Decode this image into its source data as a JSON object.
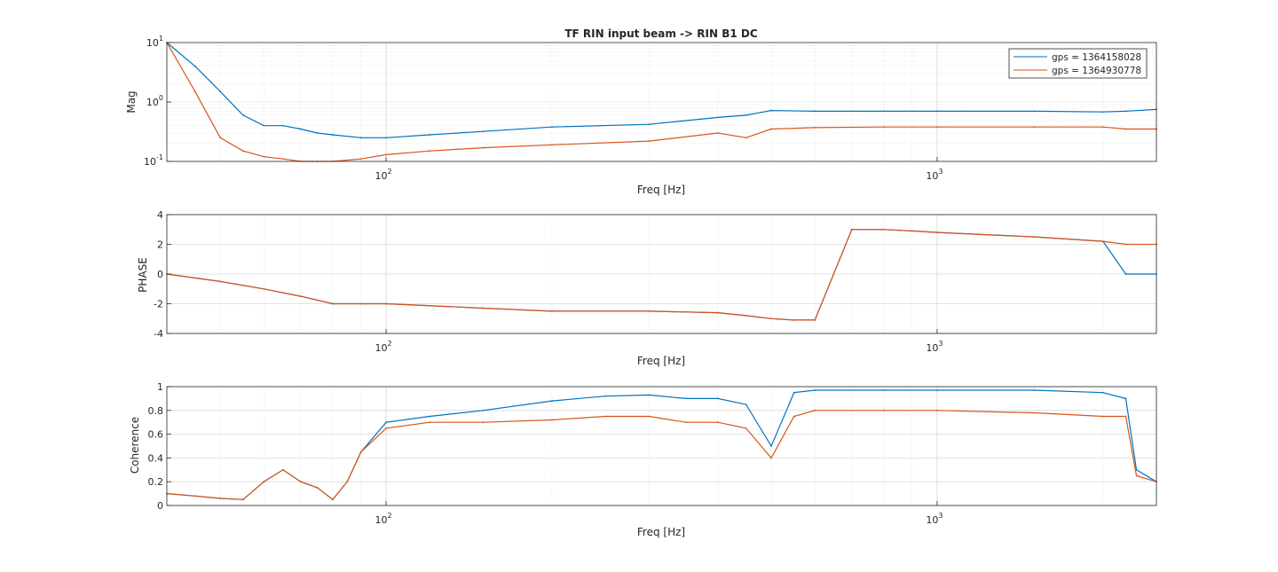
{
  "chart_data": [
    {
      "type": "line",
      "title": "TF RIN input beam -> RIN B1 DC",
      "xlabel": "Freq [Hz]",
      "ylabel": "Mag",
      "xscale": "log",
      "yscale": "log",
      "xlim": [
        40,
        2500
      ],
      "ylim": [
        0.1,
        10
      ],
      "x_tick_labels": [
        "10^2",
        "10^3"
      ],
      "y_tick_labels": [
        "10^-1",
        "10^0",
        "10^1"
      ],
      "grid": true,
      "legend_position": "top-right",
      "series": [
        {
          "name": "gps = 1364158028",
          "color": "#0072BD",
          "x": [
            40,
            45,
            50,
            55,
            60,
            65,
            70,
            75,
            80,
            90,
            100,
            120,
            150,
            200,
            300,
            400,
            450,
            500,
            600,
            800,
            1000,
            1500,
            2000,
            2200,
            2500
          ],
          "values": [
            10,
            4,
            1.5,
            0.6,
            0.4,
            0.4,
            0.35,
            0.3,
            0.28,
            0.25,
            0.25,
            0.28,
            0.32,
            0.38,
            0.42,
            0.55,
            0.6,
            0.72,
            0.7,
            0.7,
            0.7,
            0.7,
            0.68,
            0.7,
            0.75
          ]
        },
        {
          "name": "gps = 1364930778",
          "color": "#D95319",
          "x": [
            40,
            45,
            50,
            55,
            60,
            65,
            70,
            75,
            80,
            90,
            100,
            120,
            150,
            200,
            300,
            400,
            450,
            500,
            600,
            800,
            1000,
            1500,
            2000,
            2200,
            2500
          ],
          "values": [
            10,
            1.5,
            0.25,
            0.15,
            0.12,
            0.11,
            0.1,
            0.1,
            0.1,
            0.11,
            0.13,
            0.15,
            0.17,
            0.19,
            0.22,
            0.3,
            0.25,
            0.35,
            0.37,
            0.38,
            0.38,
            0.38,
            0.38,
            0.35,
            0.35
          ]
        }
      ]
    },
    {
      "type": "line",
      "title": "",
      "xlabel": "Freq [Hz]",
      "ylabel": "PHASE",
      "xscale": "log",
      "xlim": [
        40,
        2500
      ],
      "ylim": [
        -4,
        4
      ],
      "x_tick_labels": [
        "10^2",
        "10^3"
      ],
      "y_tick_labels": [
        "-4",
        "-2",
        "0",
        "2",
        "4"
      ],
      "grid": true,
      "series": [
        {
          "color": "#0072BD",
          "x": [
            40,
            50,
            60,
            70,
            80,
            90,
            100,
            150,
            200,
            300,
            400,
            450,
            500,
            550,
            600,
            700,
            800,
            900,
            1000,
            1500,
            2000,
            2200,
            2500
          ],
          "values": [
            0,
            -0.5,
            -1,
            -1.5,
            -2,
            -2,
            -2,
            -2.3,
            -2.5,
            -2.5,
            -2.6,
            -2.8,
            -3.0,
            -3.1,
            -3.1,
            3.0,
            3.0,
            2.9,
            2.8,
            2.5,
            2.2,
            0,
            0
          ]
        },
        {
          "color": "#D95319",
          "x": [
            40,
            50,
            60,
            70,
            80,
            90,
            100,
            150,
            200,
            300,
            400,
            450,
            500,
            550,
            600,
            700,
            800,
            900,
            1000,
            1500,
            2000,
            2200,
            2500
          ],
          "values": [
            0,
            -0.5,
            -1,
            -1.5,
            -2,
            -2,
            -2,
            -2.3,
            -2.5,
            -2.5,
            -2.6,
            -2.8,
            -3.0,
            -3.1,
            -3.1,
            3.0,
            3.0,
            2.9,
            2.8,
            2.5,
            2.2,
            2.0,
            2.0
          ]
        }
      ]
    },
    {
      "type": "line",
      "title": "",
      "xlabel": "Freq [Hz]",
      "ylabel": "Coherence",
      "xscale": "log",
      "xlim": [
        40,
        2500
      ],
      "ylim": [
        0,
        1
      ],
      "x_tick_labels": [
        "10^2",
        "10^3"
      ],
      "y_tick_labels": [
        "0",
        "0.2",
        "0.4",
        "0.6",
        "0.8",
        "1"
      ],
      "grid": true,
      "series": [
        {
          "color": "#0072BD",
          "x": [
            40,
            45,
            50,
            55,
            60,
            65,
            70,
            75,
            80,
            85,
            90,
            100,
            120,
            150,
            200,
            250,
            300,
            350,
            400,
            450,
            500,
            550,
            600,
            800,
            1000,
            1500,
            2000,
            2200,
            2300,
            2500
          ],
          "values": [
            0.1,
            0.08,
            0.06,
            0.05,
            0.2,
            0.3,
            0.2,
            0.15,
            0.05,
            0.2,
            0.45,
            0.7,
            0.75,
            0.8,
            0.88,
            0.92,
            0.93,
            0.9,
            0.9,
            0.85,
            0.5,
            0.95,
            0.97,
            0.97,
            0.97,
            0.97,
            0.95,
            0.9,
            0.3,
            0.2
          ]
        },
        {
          "color": "#D95319",
          "x": [
            40,
            45,
            50,
            55,
            60,
            65,
            70,
            75,
            80,
            85,
            90,
            100,
            120,
            150,
            200,
            250,
            300,
            350,
            400,
            450,
            500,
            550,
            600,
            800,
            1000,
            1500,
            2000,
            2200,
            2300,
            2500
          ],
          "values": [
            0.1,
            0.08,
            0.06,
            0.05,
            0.2,
            0.3,
            0.2,
            0.15,
            0.05,
            0.2,
            0.45,
            0.65,
            0.7,
            0.7,
            0.72,
            0.75,
            0.75,
            0.7,
            0.7,
            0.65,
            0.4,
            0.75,
            0.8,
            0.8,
            0.8,
            0.78,
            0.75,
            0.75,
            0.25,
            0.2
          ]
        }
      ]
    }
  ]
}
